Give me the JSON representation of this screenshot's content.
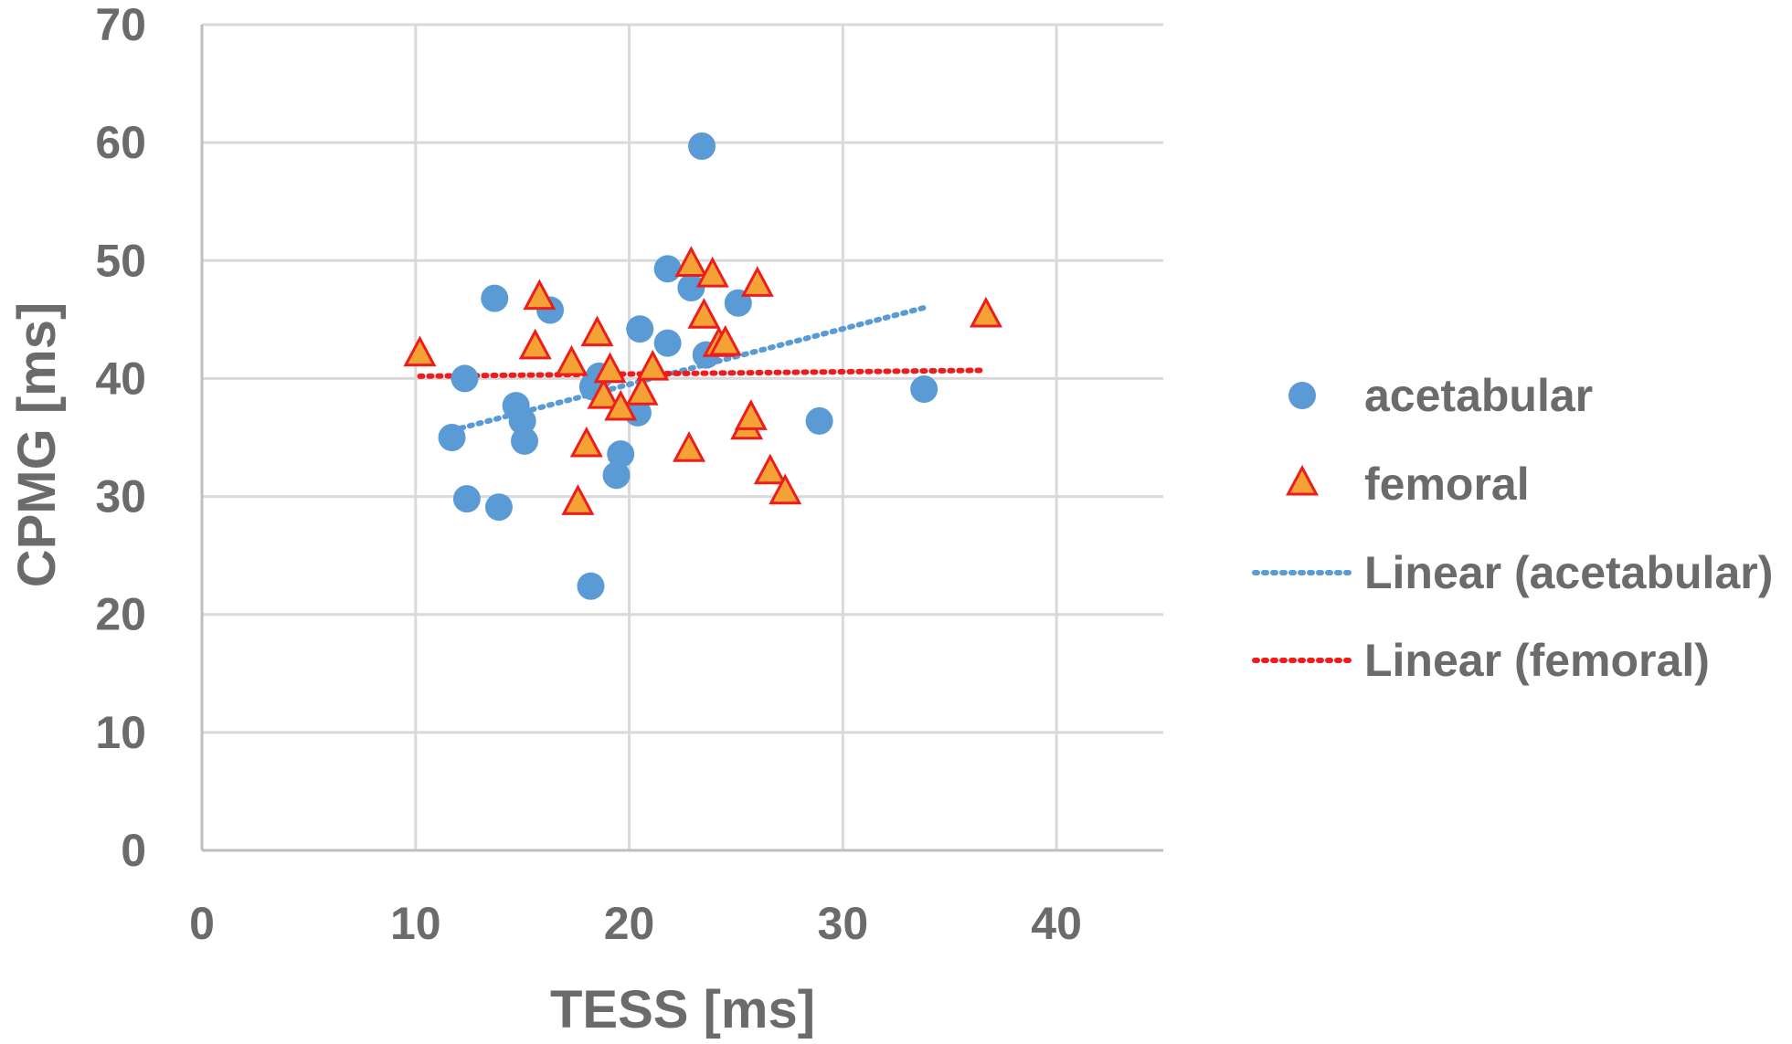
{
  "chart_data": {
    "type": "scatter",
    "xlabel": "TESS [ms]",
    "ylabel": "CPMG [ms]",
    "xlim": [
      0,
      45
    ],
    "ylim": [
      0,
      70
    ],
    "xticks": [
      "0",
      "10",
      "20",
      "30",
      "40"
    ],
    "yticks": [
      "0",
      "10",
      "20",
      "30",
      "40",
      "50",
      "60",
      "70"
    ],
    "grid": true,
    "legend_position": "right",
    "series": [
      {
        "name": "acetabular",
        "marker": "circle",
        "color": "#5b9bd5",
        "points": [
          [
            11.7,
            35.0
          ],
          [
            12.3,
            40.0
          ],
          [
            12.4,
            29.8
          ],
          [
            13.7,
            46.8
          ],
          [
            13.9,
            29.1
          ],
          [
            14.7,
            37.7
          ],
          [
            15.0,
            36.4
          ],
          [
            15.1,
            34.7
          ],
          [
            16.3,
            45.8
          ],
          [
            18.2,
            22.4
          ],
          [
            18.3,
            39.3
          ],
          [
            18.6,
            40.2
          ],
          [
            19.4,
            31.8
          ],
          [
            19.6,
            33.6
          ],
          [
            20.4,
            37.1
          ],
          [
            20.5,
            44.2
          ],
          [
            21.8,
            43.0
          ],
          [
            21.8,
            49.3
          ],
          [
            22.9,
            47.7
          ],
          [
            23.4,
            59.7
          ],
          [
            23.6,
            42.0
          ],
          [
            25.1,
            46.4
          ],
          [
            28.9,
            36.4
          ],
          [
            33.8,
            39.1
          ]
        ]
      },
      {
        "name": "femoral",
        "marker": "triangle",
        "color": "#f4a236",
        "stroke": "#ee1c1c",
        "points": [
          [
            10.2,
            42.0
          ],
          [
            15.6,
            42.6
          ],
          [
            15.8,
            46.8
          ],
          [
            17.3,
            41.2
          ],
          [
            17.6,
            29.4
          ],
          [
            18.0,
            34.3
          ],
          [
            18.5,
            43.7
          ],
          [
            18.8,
            38.4
          ],
          [
            19.1,
            40.6
          ],
          [
            19.6,
            37.4
          ],
          [
            20.6,
            38.7
          ],
          [
            21.1,
            40.8
          ],
          [
            22.8,
            33.9
          ],
          [
            22.9,
            49.6
          ],
          [
            23.5,
            45.2
          ],
          [
            23.9,
            48.7
          ],
          [
            24.2,
            42.8
          ],
          [
            24.5,
            42.9
          ],
          [
            25.5,
            35.8
          ],
          [
            25.7,
            36.6
          ],
          [
            26.0,
            47.9
          ],
          [
            26.6,
            32.0
          ],
          [
            27.3,
            30.3
          ],
          [
            36.7,
            45.3
          ]
        ]
      }
    ],
    "trendlines": [
      {
        "name": "Linear (acetabular)",
        "color": "#5b9bd5",
        "x": [
          11.7,
          33.8
        ],
        "y": [
          35.6,
          46.0
        ]
      },
      {
        "name": "Linear (femoral)",
        "color": "#ee1c1c",
        "x": [
          10.2,
          36.7
        ],
        "y": [
          40.2,
          40.7
        ]
      }
    ]
  }
}
